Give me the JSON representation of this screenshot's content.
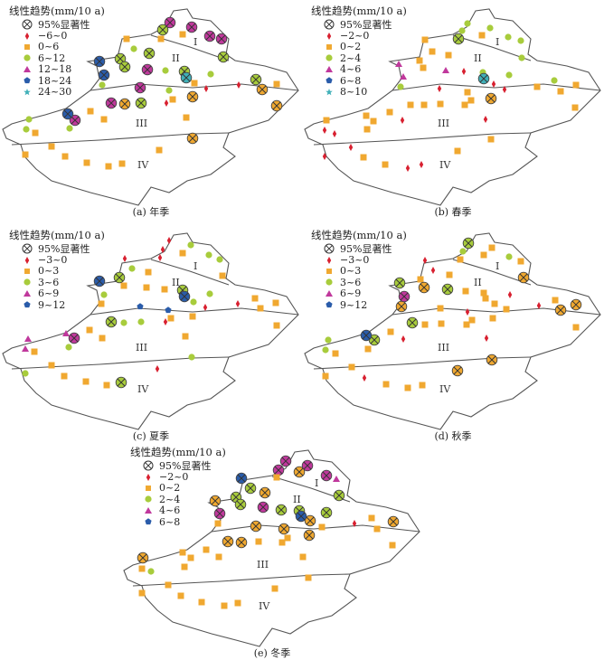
{
  "colors": {
    "red": "#d82030",
    "orange": "#f0a830",
    "green": "#a8cc3c",
    "pink": "#c0389c",
    "blue": "#2a5caa",
    "teal": "#40b0b8"
  },
  "legend_common": {
    "title": "线性趋势(mm/10 a)",
    "significance": "95%显著性"
  },
  "zones": [
    "I",
    "II",
    "III",
    "IV"
  ],
  "panels": [
    {
      "caption": "(a) 年季",
      "classes": [
        "−6~0",
        "0~6",
        "6~12",
        "12~18",
        "18~24",
        "24~30"
      ],
      "groups": [
        {
          "cls": 3,
          "sig": true
        },
        {
          "cls": 2,
          "sig": true
        },
        {
          "cls": 4,
          "sig": true
        },
        {
          "cls": 5,
          "sig": true
        },
        {
          "cls": 1,
          "sig": true
        },
        {
          "cls": 1,
          "sig": false
        },
        {
          "cls": 2,
          "sig": false
        },
        {
          "cls": 0,
          "sig": false
        }
      ]
    },
    {
      "caption": "(b) 春季",
      "classes": [
        "−2~0",
        "0~2",
        "2~4",
        "4~6",
        "6~8",
        "8~10"
      ],
      "groups": [
        {
          "cls": 2,
          "sig": false
        },
        {
          "cls": 2,
          "sig": true
        },
        {
          "cls": 5,
          "sig": true
        },
        {
          "cls": 1,
          "sig": true
        },
        {
          "cls": 1,
          "sig": false
        },
        {
          "cls": 3,
          "sig": false
        },
        {
          "cls": 0,
          "sig": false
        }
      ]
    },
    {
      "caption": "(c) 夏季",
      "classes": [
        "−3~0",
        "0~3",
        "3~6",
        "6~9",
        "9~12"
      ],
      "groups": [
        {
          "cls": 0,
          "sig": false
        },
        {
          "cls": 2,
          "sig": false
        },
        {
          "cls": 1,
          "sig": false
        },
        {
          "cls": 2,
          "sig": true
        },
        {
          "cls": 4,
          "sig": true
        },
        {
          "cls": 4,
          "sig": false
        },
        {
          "cls": 3,
          "sig": false
        },
        {
          "cls": 3,
          "sig": true
        }
      ]
    },
    {
      "caption": "(d) 秋季",
      "classes": [
        "−3~0",
        "0~3",
        "3~6",
        "6~9",
        "9~12"
      ],
      "groups": [
        {
          "cls": 2,
          "sig": true
        },
        {
          "cls": 2,
          "sig": false
        },
        {
          "cls": 1,
          "sig": false
        },
        {
          "cls": 1,
          "sig": true
        },
        {
          "cls": 3,
          "sig": true
        },
        {
          "cls": 4,
          "sig": true
        },
        {
          "cls": 0,
          "sig": false
        }
      ]
    },
    {
      "caption": "(e) 冬季",
      "classes": [
        "−2~0",
        "0~2",
        "2~4",
        "4~6",
        "6~8"
      ],
      "groups": [
        {
          "cls": 3,
          "sig": true
        },
        {
          "cls": 3,
          "sig": false
        },
        {
          "cls": 1,
          "sig": true
        },
        {
          "cls": 2,
          "sig": true
        },
        {
          "cls": 4,
          "sig": true
        },
        {
          "cls": 1,
          "sig": false
        },
        {
          "cls": 2,
          "sig": false
        },
        {
          "cls": 0,
          "sig": false
        }
      ]
    }
  ]
}
